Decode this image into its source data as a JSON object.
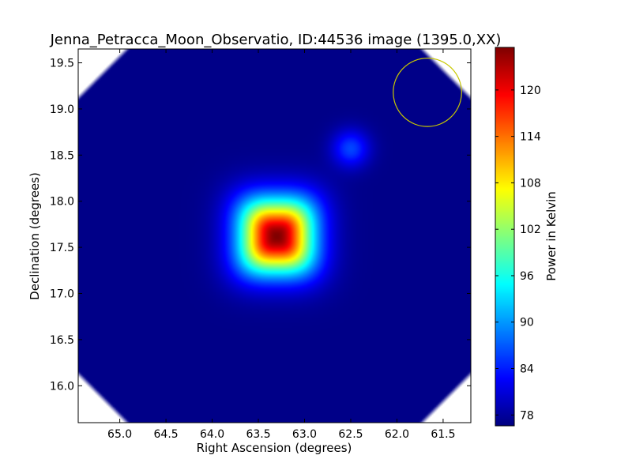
{
  "chart_data": {
    "type": "heatmap",
    "title": "Jenna_Petracca_Moon_Observatio, ID:44536 image (1395.0,XX)",
    "xlabel": "Right Ascension (degrees)",
    "ylabel": "Declination (degrees)",
    "colorbar_label": "Power in Kelvin",
    "colormap": "jet",
    "xlim": [
      65.45,
      61.2
    ],
    "ylim": [
      15.6,
      19.65
    ],
    "x_inverted": true,
    "xticks": [
      65.0,
      64.5,
      64.0,
      63.5,
      63.0,
      62.5,
      62.0,
      61.5
    ],
    "xtick_labels": [
      "65.0",
      "64.5",
      "64.0",
      "63.5",
      "63.0",
      "62.5",
      "62.0",
      "61.5"
    ],
    "yticks": [
      16.0,
      16.5,
      17.0,
      17.5,
      18.0,
      18.5,
      19.0,
      19.5
    ],
    "ytick_labels": [
      "16.0",
      "16.5",
      "17.0",
      "17.5",
      "18.0",
      "18.5",
      "19.0",
      "19.5"
    ],
    "color_range": [
      76.6,
      125.5
    ],
    "colorbar_ticks": [
      78,
      84,
      90,
      96,
      102,
      108,
      114,
      120
    ],
    "colorbar_tick_labels": [
      "78",
      "84",
      "90",
      "96",
      "102",
      "108",
      "114",
      "120"
    ],
    "background_level": 77,
    "sources": [
      {
        "ra": 63.3,
        "dec": 17.62,
        "peak": 125.5,
        "radius_deg": 0.42
      },
      {
        "ra": 62.5,
        "dec": 18.57,
        "peak": 86,
        "radius_deg": 0.2
      }
    ],
    "beam_marker": {
      "ra": 61.67,
      "dec": 19.18,
      "radius_deg": 0.37,
      "color": "#c8c800"
    },
    "blank_corners": true
  }
}
